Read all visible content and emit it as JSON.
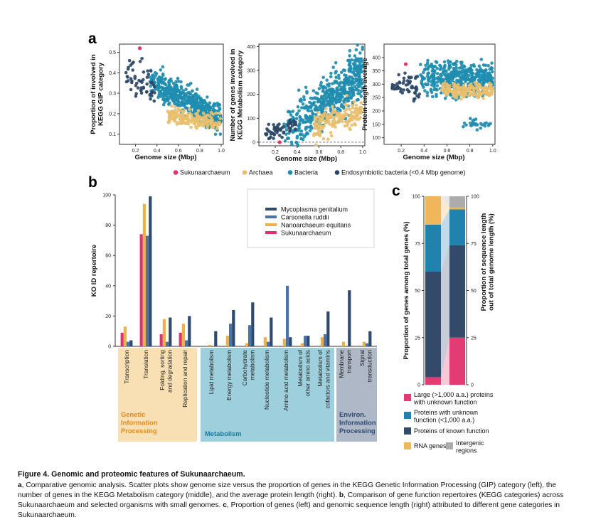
{
  "panel_labels": {
    "a": "a",
    "b": "b",
    "c": "c"
  },
  "colors": {
    "sukunaarchaeum": "#e0336e",
    "archaea": "#e8bf6e",
    "bacteria": "#1f8db0",
    "endosymbiotic": "#2c4867",
    "mycoplasma": "#2f4a6e",
    "carsonella": "#4a74a8",
    "nanoarchaeum": "#f0b049",
    "genetic_bg": "#f8dfb4",
    "genetic_text": "#e08a1e",
    "metabolism_bg": "#9dcfdc",
    "metabolism_text": "#1d79a0",
    "environ_bg": "#aeb8c7",
    "environ_text": "#2d4870",
    "large_unknown": "#e33b73",
    "small_unknown": "#2082ad",
    "known": "#334a6b",
    "rna": "#f0b65a",
    "intergenic": "#acacac"
  },
  "panel_a": {
    "legend": [
      {
        "label": "Sukunaarchaeum",
        "color": "#e0336e"
      },
      {
        "label": "Archaea",
        "color": "#e8bf6e"
      },
      {
        "label": "Bacteria",
        "color": "#1f8db0"
      },
      {
        "label": "Endosymbiotic bacteria (<0.4 Mbp genome)",
        "color": "#2c4867"
      }
    ]
  },
  "chart_data": [
    {
      "type": "scatter",
      "title": "",
      "xlabel": "Genome size (Mbp)",
      "ylabel": "Proportion of involved in KEGG GIP category",
      "ylabel_lines": [
        "Proportion of involved in",
        "KEGG GIP category"
      ],
      "xlim": [
        0.05,
        1.02
      ],
      "ylim": [
        0.05,
        0.54
      ],
      "xticks": [
        0.2,
        0.4,
        0.6,
        0.8,
        1.0
      ],
      "xtick_labels": [
        "0.2",
        "0.4",
        "0.6",
        "0.8",
        "1.0"
      ],
      "yticks": [
        0.1,
        0.2,
        0.3,
        0.4,
        0.5
      ],
      "ytick_labels": [
        "0.1",
        "0.2",
        "0.3",
        "0.4",
        "0.5"
      ],
      "series": [
        {
          "name": "Sukunaarchaeum",
          "x": [
            0.24
          ],
          "y": [
            0.52
          ]
        },
        {
          "name": "Endosymbiotic bacteria",
          "trend": "high proportion (0.25-0.47) at genome sizes 0.10-0.40 Mbp"
        },
        {
          "name": "Bacteria",
          "trend": "decreasing from ~0.35 at 0.35 Mbp to ~0.15 at 1.0 Mbp"
        },
        {
          "name": "Archaea",
          "trend": "0.12-0.22 for genome sizes 0.5-1.0 Mbp"
        }
      ]
    },
    {
      "type": "scatter",
      "title": "",
      "xlabel": "Genome size (Mbp)",
      "ylabel": "Number of genes involved in KEGG Metabolism category",
      "ylabel_lines": [
        "Number of genes involved in",
        "KEGG Metabolism category"
      ],
      "xlim": [
        0.05,
        1.02
      ],
      "ylim": [
        -15,
        410
      ],
      "xticks": [
        0.2,
        0.4,
        0.6,
        0.8,
        1.0
      ],
      "xtick_labels": [
        "0.2",
        "0.4",
        "0.6",
        "0.8",
        "1.0"
      ],
      "yticks": [
        0,
        100,
        200,
        300,
        400
      ],
      "ytick_labels": [
        "0",
        "100",
        "200",
        "300",
        "400"
      ],
      "reference_line_y": 0,
      "series": [
        {
          "name": "Sukunaarchaeum",
          "x": [
            0.24
          ],
          "y": [
            0
          ]
        },
        {
          "name": "Endosymbiotic bacteria",
          "trend": "10-100 genes at genome sizes 0.10-0.40 Mbp"
        },
        {
          "name": "Bacteria",
          "trend": "increasing from ~20 at 0.3 Mbp to 200-400 at 1.0 Mbp"
        },
        {
          "name": "Archaea",
          "trend": "40-200 genes for genome sizes 0.55-1.0 Mbp"
        }
      ]
    },
    {
      "type": "scatter",
      "title": "",
      "xlabel": "Genome size (Mbp)",
      "ylabel": "Protein length average",
      "ylabel_lines": [
        "Protein length average"
      ],
      "xlim": [
        0.05,
        1.02
      ],
      "ylim": [
        75,
        450
      ],
      "xticks": [
        0.2,
        0.4,
        0.6,
        0.8,
        1.0
      ],
      "xtick_labels": [
        "0.2",
        "0.4",
        "0.6",
        "0.8",
        "1.0"
      ],
      "yticks": [
        100,
        150,
        200,
        250,
        300,
        350,
        400
      ],
      "ytick_labels": [
        "100",
        "150",
        "200",
        "250",
        "300",
        "350",
        "400"
      ],
      "series": [
        {
          "name": "Sukunaarchaeum",
          "x": [
            0.24
          ],
          "y": [
            375
          ]
        },
        {
          "name": "Endosymbiotic bacteria",
          "trend": "250-370 aa at 0.12-0.35 Mbp, a few near 150"
        },
        {
          "name": "Bacteria",
          "trend": "250-400 aa, a cluster at 130-170 aa for 0.75-1.0 Mbp"
        },
        {
          "name": "Archaea",
          "trend": "240-320 aa for 0.6-1.0 Mbp"
        }
      ]
    },
    {
      "type": "bar",
      "title": "",
      "xlabel": "",
      "ylabel": "KO ID repertoire",
      "ylim": [
        0,
        100
      ],
      "yticks": [
        0,
        20,
        40,
        60,
        80,
        100
      ],
      "ytick_labels": [
        "0",
        "20",
        "40",
        "60",
        "80",
        "100"
      ],
      "legend_placement": "top-right",
      "categories": [
        "Transcription",
        "Translation",
        "Folding, sorting and degradation",
        "Replication and repair",
        "Lipid metabolism",
        "Energy metabolism",
        "Carbohydrate metabolism",
        "Nucleotide metabolism",
        "Amino acid metabolism",
        "Metabolism of other amino acids",
        "Metabolism of cofactors and vitamins",
        "Membrane transport",
        "Signal transduction"
      ],
      "category_lines": [
        [
          "Transcription"
        ],
        [
          "Translation"
        ],
        [
          "Folding, sorting",
          "and degradation"
        ],
        [
          "Replication and repair"
        ],
        [
          "Lipid metabolism"
        ],
        [
          "Energy metabolism"
        ],
        [
          "Carbohydrate",
          "metabolism"
        ],
        [
          "Nucleotide metabolism"
        ],
        [
          "Amino acid metabolism"
        ],
        [
          "Metabolism of",
          "other amino acids"
        ],
        [
          "Metabolism of",
          "cofactors and vitamins"
        ],
        [
          "Membrane",
          "transport"
        ],
        [
          "Signal",
          "transduction"
        ]
      ],
      "series": [
        {
          "name": "Sukunaarchaeum",
          "color": "#e0336e",
          "values": [
            9,
            74,
            8,
            9,
            0,
            0,
            0,
            0,
            0,
            0,
            0,
            0,
            0
          ]
        },
        {
          "name": "Nanoarchaeum equitans",
          "color": "#f0b049",
          "values": [
            13,
            94,
            18,
            15,
            1,
            7,
            2,
            6,
            5,
            2,
            6,
            3,
            3
          ]
        },
        {
          "name": "Carsonella ruddii",
          "color": "#4a74a8",
          "values": [
            3,
            73,
            3,
            4,
            0,
            15,
            14,
            3,
            40,
            7,
            8,
            0,
            2
          ]
        },
        {
          "name": "Mycoplasma genitalium",
          "color": "#2f4a6e",
          "values": [
            4,
            99,
            19,
            20,
            10,
            24,
            29,
            19,
            6,
            7,
            23,
            37,
            10
          ]
        }
      ],
      "legend_order": [
        "Mycoplasma genitalium",
        "Carsonella ruddii",
        "Nanoarchaeum equitans",
        "Sukunaarchaeum"
      ],
      "groups": [
        {
          "label_lines": [
            "Genetic",
            "Information",
            "Processing"
          ],
          "span": [
            0,
            3
          ]
        },
        {
          "label_lines": [
            "Metabolism"
          ],
          "span": [
            4,
            10
          ]
        },
        {
          "label_lines": [
            "Environ.",
            "Information",
            "Processing"
          ],
          "span": [
            11,
            12
          ]
        }
      ]
    },
    {
      "type": "bar",
      "title": "",
      "xlabel": "",
      "ylabel": "Proportion of genes among total genes (%)",
      "ylabel_right": "Proportion of sequence length out of total genome length (%)",
      "ylabel_right_lines": [
        "Proportion of sequence length",
        "out of total genome length (%)"
      ],
      "ylim": [
        0,
        100
      ],
      "yticks": [
        0,
        25,
        50,
        75,
        100
      ],
      "ytick_labels": [
        "0",
        "25",
        "50",
        "75",
        "100"
      ],
      "stacked": true,
      "categories": [
        "genes",
        "sequence length"
      ],
      "series": [
        {
          "name": "Large (>1,000 a.a.) proteins with unknown function",
          "values": [
            4,
            25
          ]
        },
        {
          "name": "Proteins of known function",
          "values": [
            56,
            49
          ]
        },
        {
          "name": "Proteins with unknown function (<1,000 a.a.)",
          "values": [
            25,
            19
          ]
        },
        {
          "name": "RNA genes",
          "values": [
            15,
            1
          ]
        },
        {
          "name": "Intergenic regions",
          "values": [
            0,
            6
          ]
        }
      ],
      "legend": [
        {
          "lines": [
            "Large (>1,000 a.a.) proteins",
            "with unknown function"
          ],
          "color": "#e33b73"
        },
        {
          "lines": [
            "Proteins with unknown",
            "function (<1,000 a.a.)"
          ],
          "color": "#2082ad"
        },
        {
          "lines": [
            "Proteins of known function"
          ],
          "color": "#334a6b"
        },
        {
          "lines": [
            "RNA genes"
          ],
          "color": "#f0b65a"
        },
        {
          "lines": [
            "Intergenic",
            "regions"
          ],
          "color": "#acacac"
        }
      ]
    }
  ],
  "caption": {
    "title": "Figure 4. Genomic and proteomic features of Sukunaarchaeum.",
    "a_label": "a",
    "a_text": ", Comparative genomic analysis. Scatter plots show genome size versus the proportion of genes in the KEGG Genetic Information Processing (GIP) category (left), the number of genes in the KEGG Metabolism category (middle), and the average protein length (right). ",
    "b_label": "b",
    "b_text": ", Comparison of gene function repertoires (KEGG categories) across Sukunaarchaeum and selected organisms with small genomes. ",
    "c_label": "c",
    "c_text": ", Proportion of genes (left) and genomic sequence length (right) attributed to different gene categories in Sukunaarchaeum."
  }
}
